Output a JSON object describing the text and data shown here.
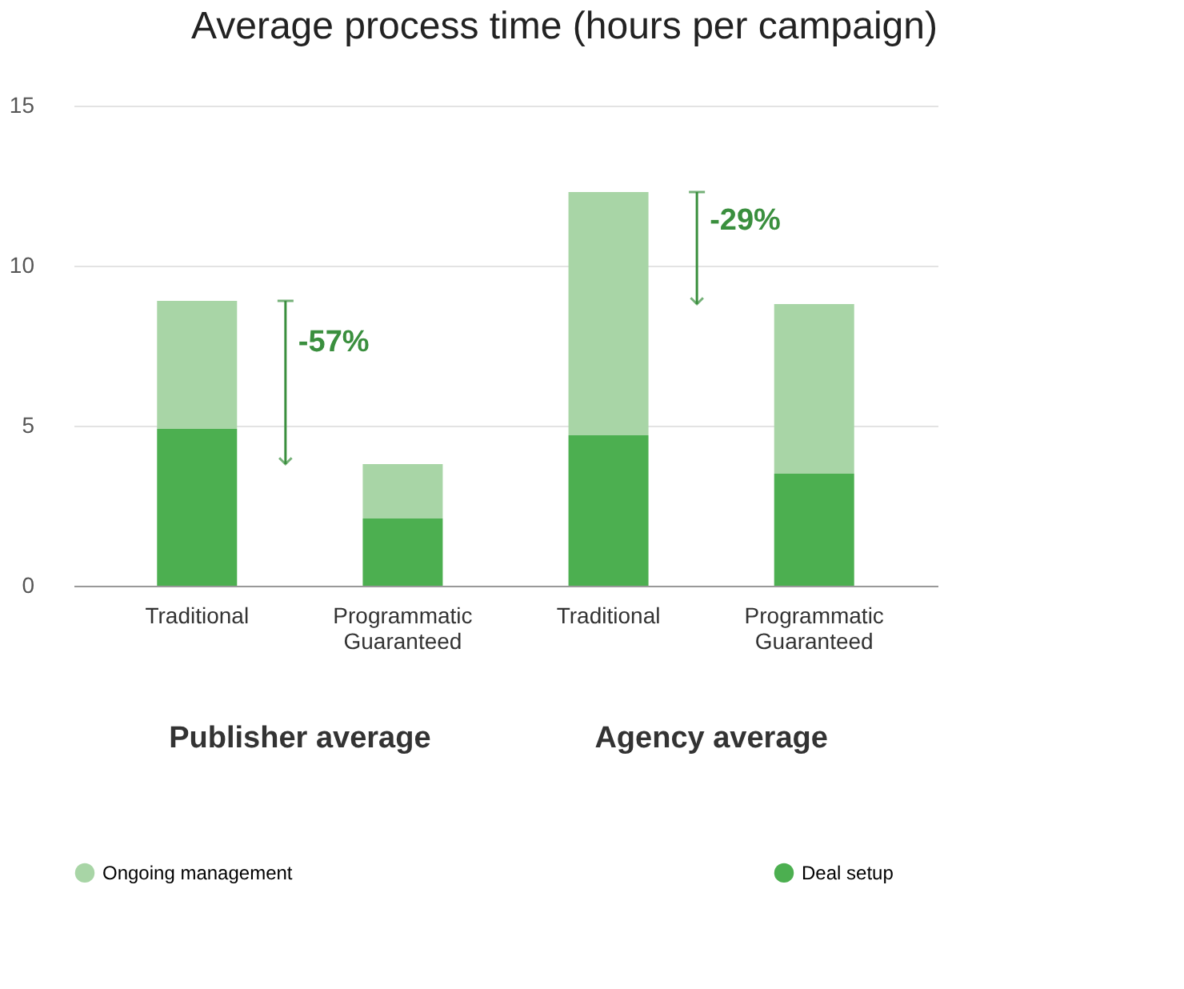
{
  "chart_data": {
    "type": "bar",
    "title": "Average process time (hours per campaign)",
    "categories": [
      "Traditional",
      "Programmatic Guaranteed",
      "Traditional",
      "Programmatic Guaranteed"
    ],
    "stacked": true,
    "series": [
      {
        "name": "Deal setup",
        "color": "#4caf50",
        "values": [
          4.9,
          2.1,
          4.7,
          3.5
        ]
      },
      {
        "name": "Ongoing management",
        "color": "#a8d5a6",
        "values": [
          4.0,
          1.7,
          7.6,
          5.3
        ]
      }
    ],
    "ylim": [
      0,
      15
    ],
    "yticks": [
      0,
      5,
      10,
      15
    ],
    "grid": "y",
    "legend": "bottom",
    "annotations": [
      "Publisher average",
      "Agency average",
      "-57%",
      "-29%"
    ]
  }
}
